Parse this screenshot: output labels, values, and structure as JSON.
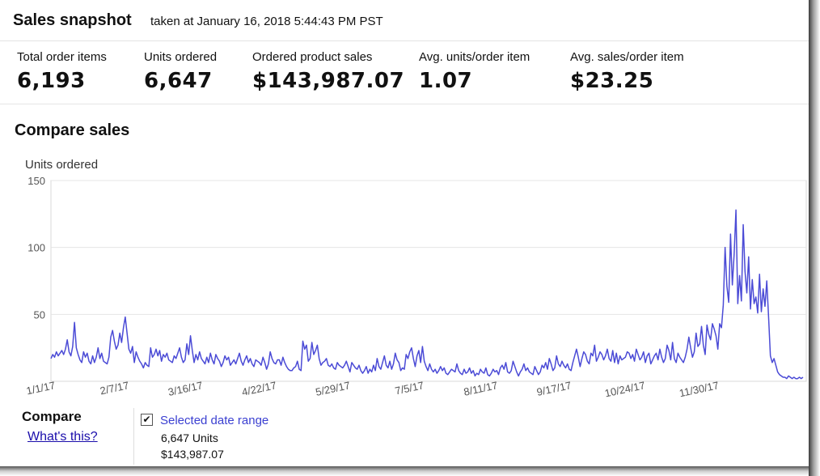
{
  "snapshot": {
    "title": "Sales snapshot",
    "subtitle": "taken at January 16, 2018 5:44:43 PM PST",
    "metrics": [
      {
        "label": "Total order items",
        "value": "6,193"
      },
      {
        "label": "Units ordered",
        "value": "6,647"
      },
      {
        "label": "Ordered product sales",
        "value": "$143,987.07"
      },
      {
        "label": "Avg. units/order item",
        "value": "1.07"
      },
      {
        "label": "Avg. sales/order item",
        "value": "$23.25"
      }
    ]
  },
  "compare": {
    "title": "Compare sales",
    "compare_label": "Compare",
    "whats_this": "What's this?",
    "selected_range_label": "Selected date range",
    "selected_units": "6,647 Units",
    "selected_sales": "$143,987.07"
  },
  "chart_data": {
    "type": "line",
    "title": "",
    "ylabel": "Units ordered",
    "xlabel": "",
    "ylim": [
      0,
      150
    ],
    "yticks": [
      50,
      100,
      150
    ],
    "xtick_labels": [
      "1/1/17",
      "2/7/17",
      "3/16/17",
      "4/22/17",
      "5/29/17",
      "7/5/17",
      "8/11/17",
      "9/17/17",
      "10/24/17",
      "11/30/17"
    ],
    "grid": true,
    "line_color": "#4b4bd6",
    "series": [
      {
        "x_start": "1/1/17",
        "x_end": "1/16/18",
        "values": [
          17,
          20,
          18,
          22,
          19,
          21,
          23,
          20,
          24,
          31,
          22,
          19,
          26,
          44,
          25,
          20,
          16,
          14,
          22,
          18,
          21,
          15,
          13,
          19,
          14,
          18,
          25,
          17,
          21,
          15,
          14,
          13,
          18,
          33,
          38,
          30,
          24,
          27,
          36,
          29,
          40,
          48,
          36,
          24,
          21,
          26,
          14,
          22,
          18,
          15,
          13,
          10,
          14,
          12,
          11,
          25,
          18,
          20,
          24,
          19,
          23,
          15,
          20,
          18,
          21,
          16,
          15,
          14,
          19,
          17,
          21,
          25,
          18,
          14,
          16,
          28,
          20,
          34,
          23,
          14,
          20,
          16,
          22,
          17,
          15,
          13,
          18,
          14,
          21,
          16,
          13,
          20,
          17,
          15,
          11,
          14,
          19,
          16,
          18,
          12,
          14,
          16,
          13,
          17,
          21,
          15,
          12,
          16,
          19,
          14,
          17,
          13,
          11,
          16,
          15,
          14,
          12,
          18,
          14,
          9,
          13,
          22,
          17,
          14,
          13,
          16,
          16,
          12,
          18,
          14,
          11,
          9,
          8,
          8,
          10,
          11,
          15,
          9,
          8,
          30,
          24,
          27,
          15,
          17,
          29,
          20,
          23,
          27,
          17,
          12,
          14,
          15,
          17,
          12,
          11,
          13,
          10,
          9,
          14,
          12,
          11,
          10,
          12,
          15,
          11,
          7,
          14,
          12,
          10,
          9,
          12,
          8,
          6,
          8,
          11,
          6,
          9,
          7,
          12,
          8,
          17,
          11,
          9,
          14,
          19,
          12,
          10,
          15,
          9,
          13,
          21,
          16,
          14,
          8,
          10,
          9,
          20,
          17,
          22,
          25,
          17,
          11,
          19,
          23,
          14,
          26,
          15,
          11,
          8,
          13,
          9,
          7,
          9,
          6,
          8,
          11,
          8,
          10,
          6,
          5,
          7,
          9,
          8,
          7,
          13,
          8,
          6,
          5,
          9,
          6,
          7,
          10,
          6,
          8,
          4,
          6,
          5,
          9,
          7,
          6,
          10,
          5,
          4,
          6,
          9,
          7,
          8,
          5,
          10,
          12,
          9,
          14,
          7,
          6,
          8,
          15,
          11,
          7,
          4,
          7,
          9,
          13,
          8,
          10,
          7,
          6,
          5,
          11,
          8,
          5,
          7,
          12,
          10,
          14,
          9,
          17,
          13,
          8,
          10,
          19,
          13,
          11,
          15,
          12,
          10,
          13,
          9,
          8,
          14,
          19,
          24,
          18,
          11,
          17,
          22,
          20,
          15,
          13,
          21,
          19,
          27,
          15,
          18,
          22,
          20,
          16,
          19,
          24,
          17,
          15,
          23,
          14,
          21,
          13,
          19,
          16,
          17,
          18,
          22,
          21,
          17,
          20,
          15,
          24,
          20,
          16,
          18,
          22,
          14,
          19,
          21,
          13,
          16,
          19,
          21,
          16,
          24,
          18,
          14,
          17,
          27,
          23,
          16,
          29,
          17,
          14,
          21,
          18,
          16,
          14,
          18,
          24,
          33,
          25,
          18,
          22,
          36,
          26,
          28,
          41,
          27,
          20,
          42,
          35,
          31,
          43,
          39,
          34,
          24,
          43,
          40,
          57,
          100,
          71,
          59,
          110,
          72,
          95,
          128,
          58,
          79,
          60,
          117,
          82,
          66,
          93,
          54,
          76,
          58,
          63,
          51,
          80,
          52,
          69,
          56,
          75,
          48,
          19,
          14,
          17,
          12,
          7,
          5,
          4,
          3,
          3,
          2,
          4,
          3,
          2,
          3,
          2,
          2,
          3,
          2,
          3
        ]
      }
    ]
  }
}
